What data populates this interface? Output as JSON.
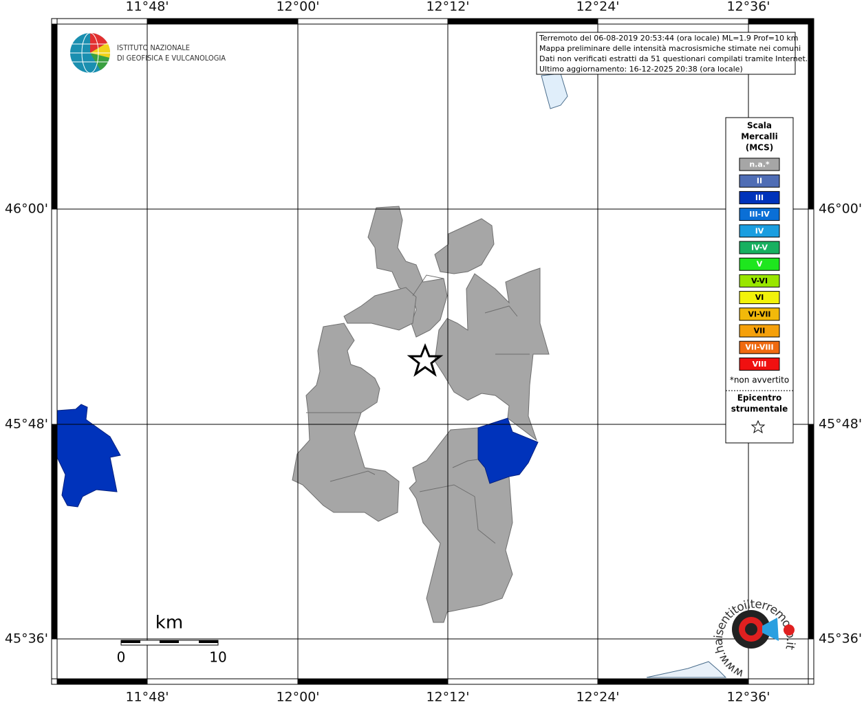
{
  "map": {
    "lon_labels": [
      "11°48'",
      "12°00'",
      "12°12'",
      "12°24'",
      "12°36'"
    ],
    "lat_labels": [
      "46°00'",
      "45°48'",
      "45°36'"
    ]
  },
  "logo": {
    "line1": "ISTITUTO NAZIONALE",
    "line2": "DI GEOFISICA E VULCANOLOGIA"
  },
  "info_box": {
    "lines": [
      "Terremoto del 06-08-2019 20:53:44 (ora locale) ML=1.9 Prof=10 km",
      "Mappa preliminare delle intensità macrosismiche stimate nei comuni",
      "Dati non verificati estratti da 51 questionari compilati tramite Internet.",
      "Ultimo aggiornamento: 16-12-2025 20:38 (ora locale)"
    ]
  },
  "legend": {
    "title": [
      "Scala",
      "Mercalli",
      "(MCS)"
    ],
    "items": [
      {
        "label": "n.a.*",
        "color": "#a6a6a6"
      },
      {
        "label": "II",
        "color": "#4f6db5"
      },
      {
        "label": "III",
        "color": "#0033bb"
      },
      {
        "label": "III-IV",
        "color": "#0a6fd6"
      },
      {
        "label": "IV",
        "color": "#1a9ee0"
      },
      {
        "label": "IV-V",
        "color": "#18b060"
      },
      {
        "label": "V",
        "color": "#1ee61e"
      },
      {
        "label": "V-VI",
        "color": "#99e600"
      },
      {
        "label": "VI",
        "color": "#f2f20a"
      },
      {
        "label": "VI-VII",
        "color": "#f2b90a"
      },
      {
        "label": "VII",
        "color": "#f5a00a"
      },
      {
        "label": "VII-VIII",
        "color": "#f06a10"
      },
      {
        "label": "VIII",
        "color": "#f01010"
      }
    ],
    "footnote": "*non avvertito",
    "epicenter": [
      "Epicentro",
      "strumentale"
    ]
  },
  "scale_bar": {
    "unit": "km",
    "labels": [
      "0",
      "10"
    ]
  },
  "watermark": "www.haisentitoilterremoto.it"
}
